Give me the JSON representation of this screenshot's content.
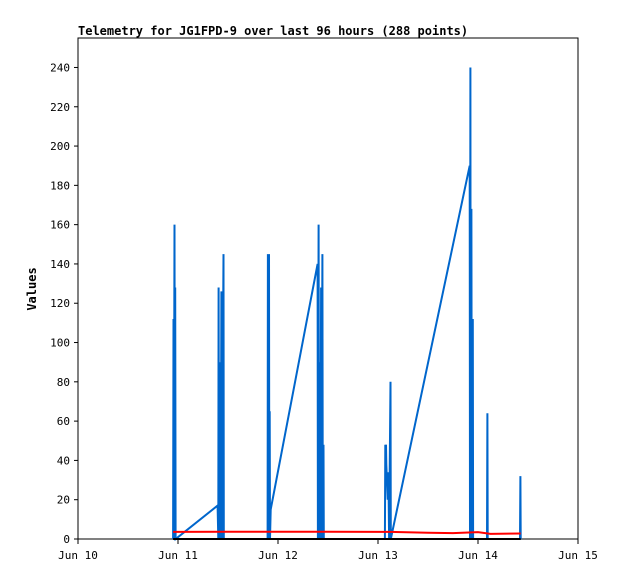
{
  "chart_data": {
    "type": "line",
    "title": "Telemetry for JG1FPD-9 over last 96 hours (288 points)",
    "xlabel": "",
    "ylabel": "Values",
    "xlim": [
      "2024-06-10T00:00",
      "2024-06-15T00:00"
    ],
    "ylim": [
      0,
      255
    ],
    "x_ticks": [
      "2024-06-10T00:00",
      "2024-06-11T00:00",
      "2024-06-12T00:00",
      "2024-06-13T00:00",
      "2024-06-14T00:00",
      "2024-06-15T00:00"
    ],
    "x_tick_labels": [
      "Jun 10",
      "Jun 11",
      "Jun 12",
      "Jun 13",
      "Jun 14",
      "Jun 15"
    ],
    "y_ticks": [
      0,
      20,
      40,
      60,
      80,
      100,
      120,
      140,
      160,
      180,
      200,
      220,
      240
    ],
    "grid": false,
    "legend": "none",
    "series": [
      {
        "color": "#0066cc",
        "points": [
          [
            "2024-06-10T22:50",
            0
          ],
          [
            "2024-06-10T22:55",
            112
          ],
          [
            "2024-06-10T23:00",
            0
          ],
          [
            "2024-06-10T23:10",
            160
          ],
          [
            "2024-06-10T23:15",
            0
          ],
          [
            "2024-06-10T23:20",
            128
          ],
          [
            "2024-06-10T23:25",
            0
          ],
          [
            "2024-06-11T09:30",
            17
          ],
          [
            "2024-06-11T09:40",
            0
          ],
          [
            "2024-06-11T09:45",
            128
          ],
          [
            "2024-06-11T09:50",
            0
          ],
          [
            "2024-06-11T10:10",
            90
          ],
          [
            "2024-06-11T10:15",
            0
          ],
          [
            "2024-06-11T10:25",
            126
          ],
          [
            "2024-06-11T10:30",
            0
          ],
          [
            "2024-06-11T10:55",
            145
          ],
          [
            "2024-06-11T11:00",
            0
          ],
          [
            "2024-06-11T21:30",
            0
          ],
          [
            "2024-06-11T21:35",
            145
          ],
          [
            "2024-06-11T21:40",
            0
          ],
          [
            "2024-06-11T21:50",
            145
          ],
          [
            "2024-06-11T21:55",
            0
          ],
          [
            "2024-06-11T22:00",
            65
          ],
          [
            "2024-06-11T22:05",
            0
          ],
          [
            "2024-06-11T22:15",
            15
          ],
          [
            "2024-06-12T09:30",
            140
          ],
          [
            "2024-06-12T09:35",
            0
          ],
          [
            "2024-06-12T09:45",
            160
          ],
          [
            "2024-06-12T09:50",
            0
          ],
          [
            "2024-06-12T10:05",
            90
          ],
          [
            "2024-06-12T10:10",
            0
          ],
          [
            "2024-06-12T10:20",
            128
          ],
          [
            "2024-06-12T10:25",
            0
          ],
          [
            "2024-06-12T10:40",
            145
          ],
          [
            "2024-06-12T10:45",
            0
          ],
          [
            "2024-06-12T10:55",
            48
          ],
          [
            "2024-06-12T11:00",
            0
          ],
          [
            "2024-06-13T01:40",
            0
          ],
          [
            "2024-06-13T01:45",
            48
          ],
          [
            "2024-06-13T01:50",
            35
          ],
          [
            "2024-06-13T01:55",
            48
          ],
          [
            "2024-06-13T02:00",
            38
          ],
          [
            "2024-06-13T02:20",
            20
          ],
          [
            "2024-06-13T02:30",
            34
          ],
          [
            "2024-06-13T02:40",
            0
          ],
          [
            "2024-06-13T03:00",
            80
          ],
          [
            "2024-06-13T03:05",
            0
          ],
          [
            "2024-06-13T22:00",
            190
          ],
          [
            "2024-06-13T22:05",
            0
          ],
          [
            "2024-06-13T22:10",
            240
          ],
          [
            "2024-06-13T22:15",
            0
          ],
          [
            "2024-06-13T22:25",
            168
          ],
          [
            "2024-06-13T22:30",
            0
          ],
          [
            "2024-06-13T22:45",
            112
          ],
          [
            "2024-06-13T22:50",
            0
          ],
          [
            "2024-06-14T02:10",
            0
          ],
          [
            "2024-06-14T02:15",
            64
          ],
          [
            "2024-06-14T02:20",
            0
          ],
          [
            "2024-06-14T10:05",
            0
          ],
          [
            "2024-06-14T10:10",
            32
          ],
          [
            "2024-06-14T10:15",
            0
          ]
        ]
      },
      {
        "color": "#ff0000",
        "points": [
          [
            "2024-06-10T22:50",
            3.6
          ],
          [
            "2024-06-11T12:00",
            3.7
          ],
          [
            "2024-06-12T00:00",
            3.7
          ],
          [
            "2024-06-12T12:00",
            3.7
          ],
          [
            "2024-06-13T03:00",
            3.6
          ],
          [
            "2024-06-13T12:00",
            3.2
          ],
          [
            "2024-06-13T18:00",
            3.0
          ],
          [
            "2024-06-14T00:00",
            3.5
          ],
          [
            "2024-06-14T03:00",
            2.6
          ],
          [
            "2024-06-14T10:15",
            2.8
          ]
        ]
      },
      {
        "color": "#000000",
        "points": [
          [
            "2024-06-10T22:50",
            0
          ],
          [
            "2024-06-14T10:15",
            0
          ]
        ]
      }
    ]
  }
}
